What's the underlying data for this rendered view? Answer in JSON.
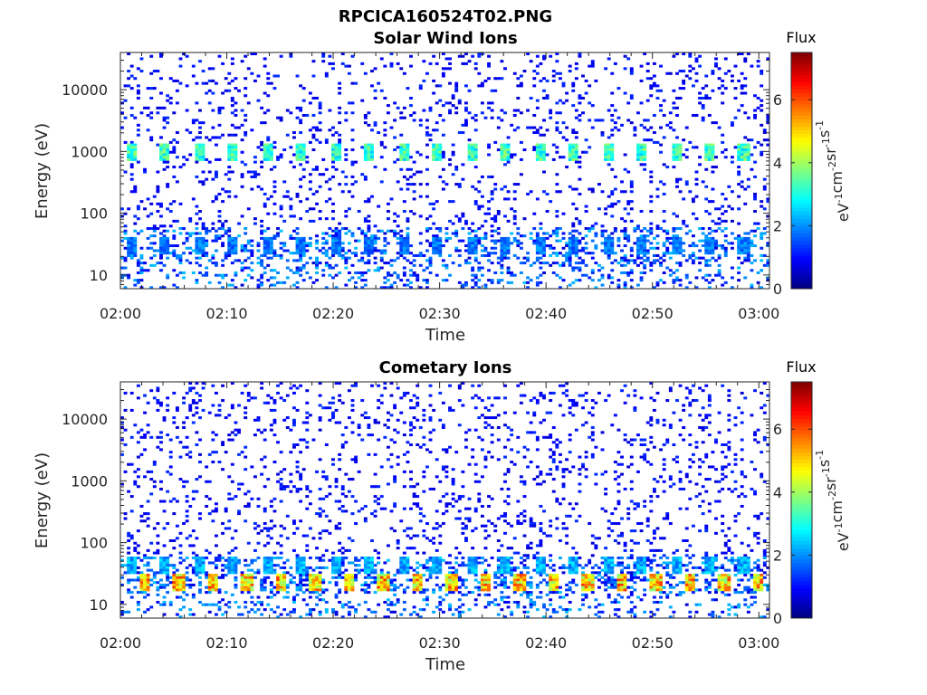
{
  "figure": {
    "title": "RPCICA160524T02.PNG"
  },
  "colorbar": {
    "title": "Flux",
    "range": [
      0,
      7.5
    ],
    "ticks": [
      0,
      2,
      4,
      6
    ],
    "colormap": "jet",
    "label_parts": [
      "eV",
      "-1",
      "cm",
      "-2",
      "sr",
      "-1",
      "s",
      "-1"
    ]
  },
  "chart_data": [
    {
      "type": "heatmap",
      "title": "Solar Wind Ions",
      "xlabel": "Time",
      "ylabel": "Energy (eV)",
      "x_ticks": [
        "02:00",
        "02:10",
        "02:20",
        "02:30",
        "02:40",
        "02:50",
        "03:00"
      ],
      "x_range_minutes": [
        0,
        61
      ],
      "y_scale": "log",
      "y_range": [
        6,
        40000
      ],
      "y_ticks": [
        10,
        100,
        1000,
        10000
      ],
      "hot_spots": [
        {
          "energy_eV": 1000,
          "flux": 3.2,
          "minute_start": 0.5,
          "period_min": 3.2
        },
        {
          "energy_eV": 30,
          "flux": 1.8,
          "minute_start": 0.5,
          "period_min": 3.2
        }
      ],
      "background_flux": 0.6
    },
    {
      "type": "heatmap",
      "title": "Cometary Ions",
      "xlabel": "Time",
      "ylabel": "Energy (eV)",
      "x_ticks": [
        "02:00",
        "02:10",
        "02:20",
        "02:30",
        "02:40",
        "02:50",
        "03:00"
      ],
      "x_range_minutes": [
        0,
        61
      ],
      "y_scale": "log",
      "y_range": [
        6,
        40000
      ],
      "y_ticks": [
        10,
        100,
        1000,
        10000
      ],
      "hot_spots": [
        {
          "energy_eV": 22,
          "flux": 5.0,
          "minute_start": 1.8,
          "period_min": 3.2
        },
        {
          "energy_eV": 45,
          "flux": 2.2,
          "minute_start": 0.5,
          "period_min": 3.2
        }
      ],
      "background_flux": 0.6
    }
  ]
}
